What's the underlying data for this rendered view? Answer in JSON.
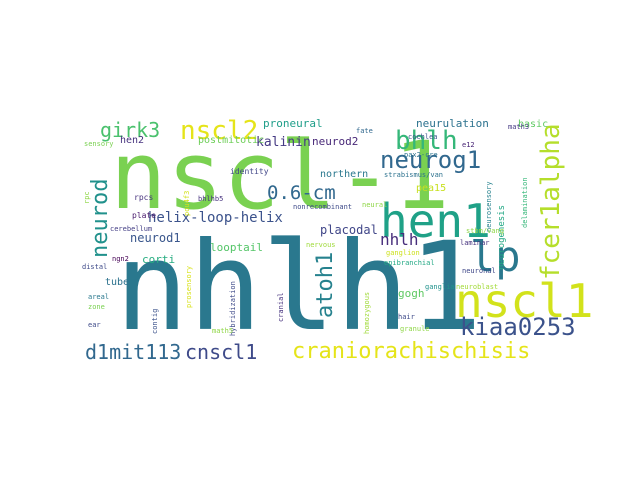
{
  "words": {
    "nscl1_1": {
      "text": "nscl-1",
      "color": "#7ad151"
    },
    "nhlh1": {
      "text": "nhlh1",
      "color": "#2a788e"
    },
    "hen1": {
      "text": "hen1",
      "color": "#1fa187"
    },
    "nscl1": {
      "text": "nscl1",
      "color": "#d2e21b"
    },
    "lp": {
      "text": "lp",
      "color": "#2a788e"
    },
    "craniorachischisis": {
      "text": "craniorachischisis",
      "color": "#e5e419"
    },
    "kiaa0253": {
      "text": "kiaa0253",
      "color": "#3b528b"
    },
    "fcer1alpha": {
      "text": "fcer1alpha",
      "color": "#b5de2b"
    },
    "neurog1": {
      "text": "neurog1",
      "color": "#31688e"
    },
    "bhlh": {
      "text": "bhlh",
      "color": "#35b779"
    },
    "nscl2": {
      "text": "nscl2",
      "color": "#e5e419"
    },
    "neurod": {
      "text": "neurod",
      "color": "#21918c"
    },
    "girk3": {
      "text": "girk3",
      "color": "#4ac16d"
    },
    "d1mit113": {
      "text": "d1mit113",
      "color": "#31688e"
    },
    "cnscl1": {
      "text": "cnscl1",
      "color": "#3e4a89"
    },
    "atoh1": {
      "text": "atoh1",
      "color": "#26828e"
    },
    "cm": {
      "text": "0.6-cm",
      "color": "#31688e"
    },
    "nhlh": {
      "text": "nhlh",
      "color": "#472d7b"
    },
    "helix": {
      "text": "helix-loop-helix",
      "color": "#3b528b"
    },
    "kalinin": {
      "text": "kalinin",
      "color": "#443983"
    },
    "neurod1": {
      "text": "neurod1",
      "color": "#39568c"
    },
    "placodal": {
      "text": "placodal",
      "color": "#404688"
    },
    "proneural": {
      "text": "proneural",
      "color": "#1f9e89"
    },
    "neurulation": {
      "text": "neurulation",
      "color": "#2c728e"
    },
    "neurod2": {
      "text": "neurod2",
      "color": "#482878"
    },
    "postmitotic": {
      "text": "postmitotic",
      "color": "#6ece58"
    },
    "northern": {
      "text": "northern",
      "color": "#2a788e"
    },
    "pea15": {
      "text": "pea15",
      "color": "#c8e020"
    },
    "looptail": {
      "text": "looptail",
      "color": "#54c568"
    },
    "corti": {
      "text": "corti",
      "color": "#27ad81"
    },
    "basic": {
      "text": "basic",
      "color": "#5ec962"
    },
    "tube": {
      "text": "tube",
      "color": "#2c728e"
    },
    "gogh": {
      "text": "gogh",
      "color": "#5ec962"
    },
    "hen2": {
      "text": "hen2",
      "color": "#46327e"
    },
    "identity": {
      "text": "identity",
      "color": "#404688"
    },
    "fate": {
      "text": "fate",
      "color": "#31688e"
    },
    "pax2cre": {
      "text": "pax2-cre",
      "color": "#2c728e"
    },
    "cochlea": {
      "text": "cochlea",
      "color": "#3b528b"
    },
    "e12": {
      "text": "e12",
      "color": "#482475"
    },
    "math3": {
      "text": "math3",
      "color": "#443983"
    },
    "sensory": {
      "text": "sensory",
      "color": "#7ad151"
    },
    "strabismus": {
      "text": "strabismus/van",
      "color": "#2c728e"
    },
    "neural": {
      "text": "neural",
      "color": "#8ed645"
    },
    "rpc": {
      "text": "rpc",
      "color": "#8ed645"
    },
    "rpcs": {
      "text": "rpcs",
      "color": "#46327e"
    },
    "pou4f3": {
      "text": "pou4f3",
      "color": "#d2e21b"
    },
    "bhlhb5": {
      "text": "bhlhb5",
      "color": "#46327e"
    },
    "plate": {
      "text": "plate",
      "color": "#481a6c"
    },
    "cerebellum": {
      "text": "cerebellum",
      "color": "#433e85"
    },
    "nonrecombinant": {
      "text": "nonrecombinant",
      "color": "#3e4a89"
    },
    "nervous": {
      "text": "nervous",
      "color": "#9fda3a"
    },
    "neurosensory": {
      "text": "neurosensory",
      "color": "#26828e"
    },
    "delamination": {
      "text": "delamination",
      "color": "#35b779"
    },
    "neurogenesis": {
      "text": "neurogenesis",
      "color": "#22a884"
    },
    "stbm": {
      "text": "stbm/vang",
      "color": "#8ed645"
    },
    "laminar": {
      "text": "laminar",
      "color": "#46327e"
    },
    "ngn2": {
      "text": "ngn2",
      "color": "#440154"
    },
    "distal": {
      "text": "distal",
      "color": "#3e4a89"
    },
    "areal": {
      "text": "areal",
      "color": "#2a788e"
    },
    "zone": {
      "text": "zone",
      "color": "#7ad151"
    },
    "ear": {
      "text": "ear",
      "color": "#3e4a89"
    },
    "contig": {
      "text": "contig",
      "color": "#3b528b"
    },
    "prosensory": {
      "text": "prosensory",
      "color": "#d8e219"
    },
    "hybridization": {
      "text": "hybridization",
      "color": "#3e4a89"
    },
    "cranial": {
      "text": "cranial",
      "color": "#46327e"
    },
    "math5": {
      "text": "math5",
      "color": "#8ed645"
    },
    "epibranchial": {
      "text": "epibranchial",
      "color": "#22a884"
    },
    "ganglion": {
      "text": "ganglion",
      "color": "#cde11d"
    },
    "ganglia": {
      "text": "ganglia",
      "color": "#20928c"
    },
    "homozygous": {
      "text": "homozygous",
      "color": "#a0da39"
    },
    "hair": {
      "text": "hair",
      "color": "#3e4a89"
    },
    "granule": {
      "text": "granule",
      "color": "#8ed645"
    },
    "neuronal": {
      "text": "neuronal",
      "color": "#3f4788"
    },
    "neuroblast": {
      "text": "neuroblast",
      "color": "#a2da37"
    }
  }
}
